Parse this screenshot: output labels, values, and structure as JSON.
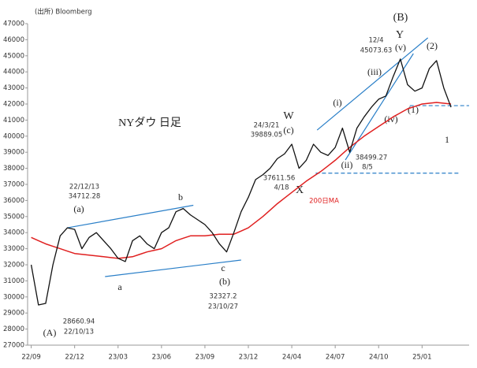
{
  "chart_data": {
    "type": "line",
    "title": "NYダウ 日足",
    "source": "(出所) Bloomberg",
    "xlim": [
      -0.5,
      60.5
    ],
    "xticks": [
      {
        "value": 0,
        "label": "22/09"
      },
      {
        "value": 6,
        "label": "22/12"
      },
      {
        "value": 12,
        "label": "23/03"
      },
      {
        "value": 18,
        "label": "23/06"
      },
      {
        "value": 24,
        "label": "23/09"
      },
      {
        "value": 30,
        "label": "23/12"
      },
      {
        "value": 36,
        "label": "24/04"
      },
      {
        "value": 42,
        "label": "24/07"
      },
      {
        "value": 48,
        "label": "24/10"
      },
      {
        "value": 54,
        "label": "25/01"
      }
    ],
    "ylim": [
      27000,
      47000
    ],
    "yticks": [
      27000,
      28000,
      29000,
      30000,
      31000,
      32000,
      33000,
      34000,
      35000,
      36000,
      37000,
      38000,
      39000,
      40000,
      41000,
      42000,
      43000,
      44000,
      45000,
      46000,
      47000
    ],
    "series": [
      {
        "color": "#111111",
        "values": [
          32000,
          29500,
          29600,
          32000,
          33800,
          34300,
          34200,
          33000,
          33700,
          34000,
          33500,
          33000,
          32400,
          32200,
          33500,
          33800,
          33300,
          33000,
          34000,
          34300,
          35300,
          35500,
          35100,
          34800,
          34500,
          34000,
          33300,
          32800,
          34000,
          35300,
          36200,
          37300,
          37600,
          38000,
          38600,
          38900,
          39500,
          38000,
          38500,
          39500,
          39000,
          38800,
          39300,
          40500,
          39000,
          40500,
          41200,
          41800,
          42300,
          42500,
          43700,
          44800,
          43200,
          42800,
          43000,
          44200,
          44700,
          43000,
          41800
        ]
      },
      {
        "name": "200日MA",
        "color": "#e02020",
        "values": [
          33700,
          33500,
          33300,
          33150,
          33000,
          32850,
          32700,
          32650,
          32600,
          32550,
          32500,
          32450,
          32400,
          32450,
          32500,
          32650,
          32800,
          32900,
          33000,
          33250,
          33500,
          33650,
          33800,
          33800,
          33800,
          33850,
          33900,
          33900,
          33900,
          34100,
          34300,
          34650,
          35000,
          35400,
          35800,
          36150,
          36500,
          36850,
          37200,
          37500,
          37800,
          38150,
          38500,
          38900,
          39300,
          39650,
          40000,
          40300,
          40600,
          40900,
          41200,
          41450,
          41700,
          41850,
          42000,
          42050,
          42100,
          42050,
          42000
        ]
      }
    ],
    "trendlines": [
      [
        [
          5,
          34300
        ],
        [
          22.4,
          35700
        ]
      ],
      [
        [
          10.2,
          31265
        ],
        [
          29,
          32294
        ]
      ],
      [
        [
          39.5,
          40380
        ],
        [
          54.8,
          46118
        ]
      ],
      [
        [
          43.4,
          38520
        ],
        [
          52.8,
          45137
        ]
      ]
    ],
    "trend_color": "#2a7fc8",
    "hlines": [
      {
        "value": 41900,
        "from": 52.3,
        "to": 60.5
      },
      {
        "value": 37700,
        "from": 39.3,
        "to": 59.3
      }
    ],
    "annotations": [
      "(A)",
      "28660.94",
      "22/10/13",
      "(a)",
      "22/12/13",
      "34712.28",
      "a",
      "b",
      "c",
      "(b)",
      "32327.2",
      "23/10/27",
      "W",
      "(c)",
      "24/3/21",
      "39889.05",
      "37611.56",
      "4/18",
      "X",
      "(i)",
      "(ii)",
      "38499.27",
      "8/5",
      "(iii)",
      "(iv)",
      "(v)",
      "12/4",
      "45073.63",
      "(B)",
      "Y",
      "(2)",
      "(1)",
      "1"
    ]
  }
}
